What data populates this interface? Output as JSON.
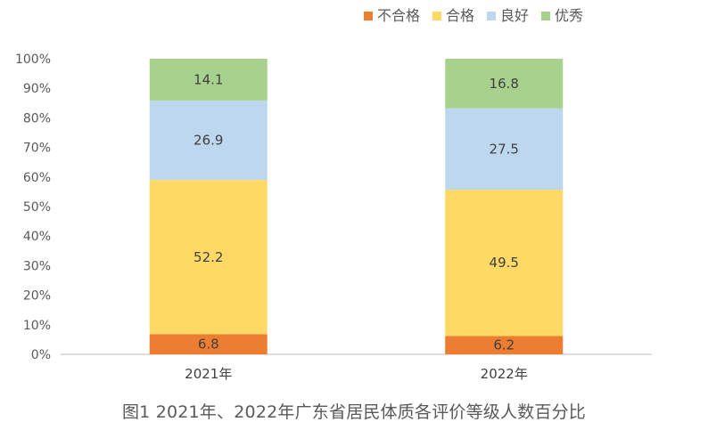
{
  "chart_data": {
    "type": "bar",
    "stacked": true,
    "categories": [
      "2021年",
      "2022年"
    ],
    "series": [
      {
        "name": "不合格",
        "values": [
          6.8,
          6.2
        ],
        "color": "#ED7D31"
      },
      {
        "name": "合格",
        "values": [
          52.2,
          49.5
        ],
        "color": "#FFD966"
      },
      {
        "name": "良好",
        "values": [
          26.9,
          27.5
        ],
        "color": "#BDD7EE"
      },
      {
        "name": "优秀",
        "values": [
          14.1,
          16.8
        ],
        "color": "#A9D18E"
      }
    ],
    "yticks": [
      "0%",
      "10%",
      "20%",
      "30%",
      "40%",
      "50%",
      "60%",
      "70%",
      "80%",
      "90%",
      "100%"
    ],
    "ylim": [
      0,
      100
    ],
    "legend_position": "top",
    "title": "",
    "xlabel": "",
    "ylabel": ""
  },
  "caption": "图1  2021年、2022年广东省居民体质各评价等级人数百分比"
}
